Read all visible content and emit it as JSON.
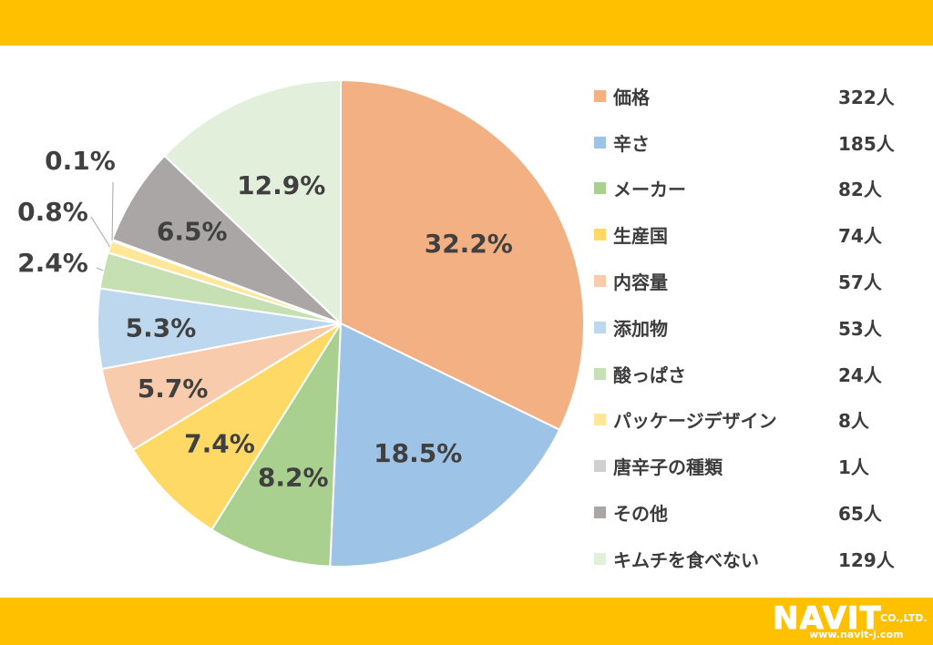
{
  "chart_data": {
    "type": "pie",
    "title": "",
    "series": [
      {
        "label": "価格",
        "count": "322人",
        "percent": 32.2,
        "percent_label": "32.2%",
        "color": "#F3B083"
      },
      {
        "label": "辛さ",
        "count": "185人",
        "percent": 18.5,
        "percent_label": "18.5%",
        "color": "#9DC3E6"
      },
      {
        "label": "メーカー",
        "count": "82人",
        "percent": 8.2,
        "percent_label": "8.2%",
        "color": "#A9D08E"
      },
      {
        "label": "生産国",
        "count": "74人",
        "percent": 7.4,
        "percent_label": "7.4%",
        "color": "#FFD966"
      },
      {
        "label": "内容量",
        "count": "57人",
        "percent": 5.7,
        "percent_label": "5.7%",
        "color": "#F8CBAD"
      },
      {
        "label": "添加物",
        "count": "53人",
        "percent": 5.3,
        "percent_label": "5.3%",
        "color": "#BDD7EE"
      },
      {
        "label": "酸っぱさ",
        "count": "24人",
        "percent": 2.4,
        "percent_label": "2.4%",
        "color": "#C6E0B4"
      },
      {
        "label": "パッケージデザイン",
        "count": "8人",
        "percent": 0.8,
        "percent_label": "0.8%",
        "color": "#FFE699"
      },
      {
        "label": "唐辛子の種類",
        "count": "1人",
        "percent": 0.1,
        "percent_label": "0.1%",
        "color": "#D0D0D0"
      },
      {
        "label": "その他",
        "count": "65人",
        "percent": 6.5,
        "percent_label": "6.5%",
        "color": "#ABA6A6"
      },
      {
        "label": "キムチを食べない",
        "count": "129人",
        "percent": 12.9,
        "percent_label": "12.9%",
        "color": "#E2EFDA"
      }
    ],
    "legend_position": "right"
  },
  "brand": {
    "logo_text": "NAVIT",
    "company_suffix": "CO.,LTD.",
    "url": "www.navit-j.com",
    "band_color": "#FFC000"
  }
}
